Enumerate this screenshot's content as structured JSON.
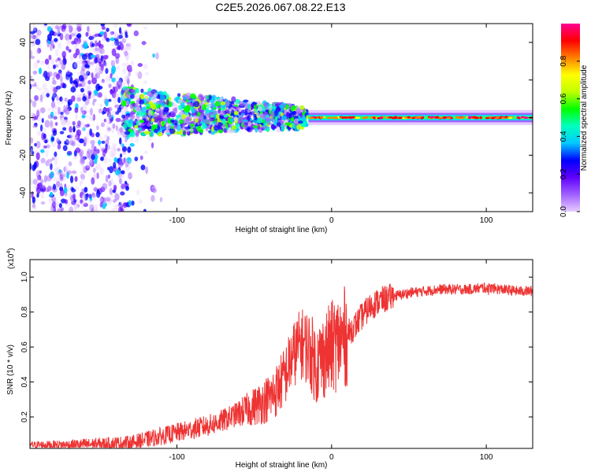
{
  "title": "C2E5.2026.067.08.22.E13",
  "chart_data": [
    {
      "type": "heatmap",
      "title": "C2E5.2026.067.08.22.E13",
      "xlabel": "Height of straight line (km)",
      "ylabel": "Frequency (Hz)",
      "xlim": [
        -195,
        130
      ],
      "ylim": [
        -50,
        50
      ],
      "xticks": [
        -100,
        0,
        100
      ],
      "xtick_labels": [
        "-100",
        "0",
        "100"
      ],
      "yticks": [
        -40,
        -20,
        0,
        20,
        40
      ],
      "ytick_labels": [
        "-40",
        "-20",
        "0",
        "20",
        "40"
      ],
      "colorbar": {
        "label": "Normalized spectral amplitude",
        "range": [
          0,
          1
        ],
        "ticks": [
          0,
          0.2,
          0.4,
          0.6,
          0.8
        ],
        "tick_labels": [
          "0.0",
          "0.2",
          "0.4",
          "0.6",
          "0.8"
        ],
        "colormap": [
          "#e6ccff",
          "#a060ff",
          "#6000ff",
          "#0000ff",
          "#00c8ff",
          "#00ffc0",
          "#00ff00",
          "#c0ff00",
          "#ffff00",
          "#ff8000",
          "#ff0000",
          "#ff0090"
        ]
      },
      "regions": [
        {
          "x_range": [
            -195,
            -135
          ],
          "freq_range": [
            -50,
            50
          ],
          "amplitude": 0.15,
          "description": "scattered"
        },
        {
          "x_range": [
            -135,
            -15
          ],
          "freq_range": [
            -12,
            12
          ],
          "amplitude": 0.4,
          "description": "noisy band"
        },
        {
          "x_range": [
            -15,
            130
          ],
          "freq_range": [
            -2,
            2
          ],
          "amplitude": 0.75,
          "description": "narrow line near 0 Hz"
        }
      ],
      "grid": false
    },
    {
      "type": "line",
      "xlabel": "Height of straight line (km)",
      "ylabel": "SNR (10 * v/v)",
      "scale_label": "(x10",
      "scale_exponent": "4",
      "scale_suffix": ")",
      "xlim": [
        -195,
        130
      ],
      "ylim": [
        0.02,
        1.1
      ],
      "xticks": [
        -100,
        0,
        100
      ],
      "xtick_labels": [
        "-100",
        "0",
        "100"
      ],
      "yticks": [
        0.2,
        0.4,
        0.6,
        0.8,
        1.0
      ],
      "ytick_labels": [
        "0.2",
        "0.4",
        "0.6",
        "0.8",
        "1.0"
      ],
      "series": [
        {
          "name": "SNR",
          "color": "#ee3333",
          "x": [
            -195,
            -170,
            -150,
            -130,
            -120,
            -110,
            -100,
            -90,
            -80,
            -70,
            -60,
            -50,
            -40,
            -35,
            -30,
            -25,
            -20,
            -15,
            -10,
            -5,
            0,
            5,
            10,
            15,
            20,
            25,
            30,
            40,
            50,
            60,
            70,
            80,
            90,
            100,
            110,
            120,
            130
          ],
          "y": [
            0.04,
            0.04,
            0.045,
            0.05,
            0.07,
            0.09,
            0.11,
            0.13,
            0.15,
            0.18,
            0.22,
            0.26,
            0.31,
            0.36,
            0.44,
            0.55,
            0.62,
            0.6,
            0.5,
            0.55,
            0.6,
            0.63,
            0.67,
            0.72,
            0.78,
            0.83,
            0.86,
            0.89,
            0.91,
            0.92,
            0.93,
            0.93,
            0.93,
            0.94,
            0.93,
            0.92,
            0.92
          ]
        }
      ],
      "annotations": [
        {
          "x": 100,
          "y": 1.08,
          "text": ""
        }
      ],
      "grid": false
    }
  ]
}
